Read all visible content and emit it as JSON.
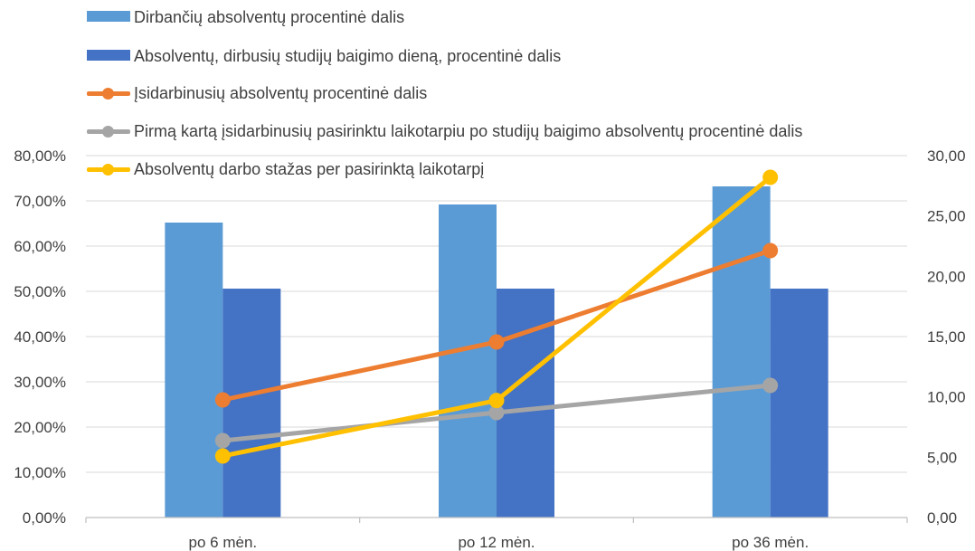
{
  "legend": [
    {
      "label": "Dirbančių absolventų procentinė dalis",
      "kind": "bar",
      "color": "#5b9bd5"
    },
    {
      "label": "Absolventų, dirbusių studijų baigimo dieną, procentinė dalis",
      "kind": "bar",
      "color": "#4472c4"
    },
    {
      "label": "Įsidarbinusių absolventų procentinė dalis",
      "kind": "line",
      "color": "#ed7d31"
    },
    {
      "label": "Pirmą kartą įsidarbinusių pasirinktu laikotarpiu po studijų baigimo absolventų procentinė dalis",
      "kind": "line",
      "color": "#a5a5a5"
    },
    {
      "label": "Absolventų darbo stažas per pasirinktą laikotarpį",
      "kind": "line",
      "color": "#ffc000"
    }
  ],
  "chart_data": {
    "type": "bar",
    "categories": [
      "po 6 mėn.",
      "po 12 mėn.",
      "po 36 mėn."
    ],
    "y_left": {
      "ylim": [
        0,
        80
      ],
      "ticks": [
        "0,00%",
        "10,00%",
        "20,00%",
        "30,00%",
        "40,00%",
        "50,00%",
        "60,00%",
        "70,00%",
        "80,00%"
      ]
    },
    "y_right": {
      "ylim": [
        0,
        30
      ],
      "ticks": [
        "0,00",
        "5,00",
        "10,00",
        "15,00",
        "20,00",
        "25,00",
        "30,00"
      ]
    },
    "grid": true,
    "legend_position": "top",
    "series": [
      {
        "name": "Dirbančių absolventų procentinė dalis",
        "type": "bar",
        "axis": "left",
        "color": "#5b9bd5",
        "values": [
          65.2,
          69.2,
          73.2
        ]
      },
      {
        "name": "Absolventų, dirbusių studijų baigimo dieną, procentinė dalis",
        "type": "bar",
        "axis": "left",
        "color": "#4472c4",
        "values": [
          50.6,
          50.6,
          50.6
        ]
      },
      {
        "name": "Įsidarbinusių absolventų procentinė dalis",
        "type": "line",
        "axis": "left",
        "color": "#ed7d31",
        "values": [
          26.0,
          38.8,
          59.0
        ]
      },
      {
        "name": "Pirmą kartą įsidarbinusių pasirinktu laikotarpiu po studijų baigimo absolventų procentinė dalis",
        "type": "line",
        "axis": "left",
        "color": "#a5a5a5",
        "values": [
          17.0,
          23.2,
          29.2
        ]
      },
      {
        "name": "Absolventų darbo stažas per pasirinktą laikotarpį",
        "type": "line",
        "axis": "right",
        "color": "#ffc000",
        "values": [
          5.1,
          9.7,
          28.2
        ]
      }
    ]
  }
}
